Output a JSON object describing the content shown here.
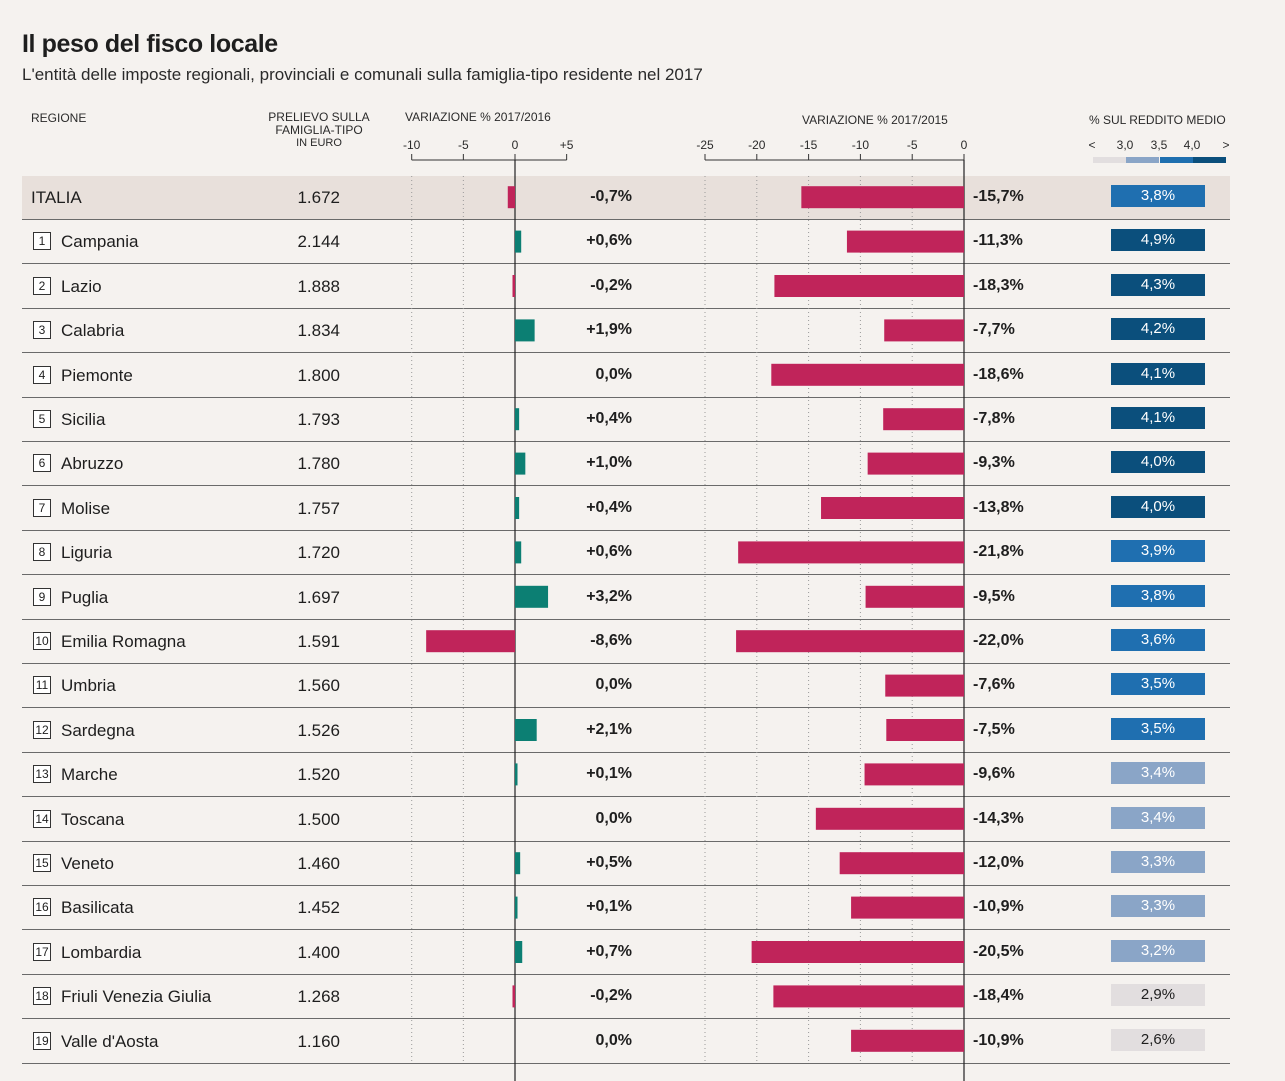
{
  "title": "Il peso del fisco locale",
  "subtitle": "L'entità delle imposte regionali, provinciali e comunali sulla famiglia-tipo residente nel 2017",
  "headers": {
    "region": "REGIONE",
    "amount_l1": "PRELIEVO SULLA",
    "amount_l2": "FAMIGLIA-TIPO",
    "amount_l3": "IN EURO",
    "v16": "VARIAZIONE % 2017/2016",
    "v15": "VARIAZIONE % 2017/2015",
    "income": "% SUL REDDITO MEDIO"
  },
  "colors": {
    "negative": "#c0245a",
    "positive": "#0c7f73",
    "income_dark": "#0b4f7c",
    "income_mid": "#1f6fb0",
    "income_light": "#8aa5c7",
    "income_lightest": "#e2dedf"
  },
  "chart_data": {
    "type": "table",
    "title": "Il peso del fisco locale",
    "subtitle": "L'entità delle imposte regionali, provinciali e comunali sulla famiglia-tipo residente nel 2017",
    "v16_axis": {
      "range": [
        -10,
        5
      ],
      "ticks": [
        "-10",
        "-5",
        "0",
        "+5"
      ]
    },
    "v15_axis": {
      "range": [
        -25,
        0
      ],
      "ticks": [
        "-25",
        "-20",
        "-15",
        "-10",
        "-5",
        "0"
      ]
    },
    "income_legend": {
      "labels": [
        "<",
        "3,0",
        "3,5",
        "4,0",
        ">"
      ]
    },
    "rows": [
      {
        "rank": "",
        "region": "ITALIA",
        "amount": "1.672",
        "v16": -0.7,
        "v16_label": "-0,7%",
        "v15": -15.7,
        "v15_label": "-15,7%",
        "income": 3.8,
        "income_label": "3,8%"
      },
      {
        "rank": "1",
        "region": "Campania",
        "amount": "2.144",
        "v16": 0.6,
        "v16_label": "+0,6%",
        "v15": -11.3,
        "v15_label": "-11,3%",
        "income": 4.9,
        "income_label": "4,9%"
      },
      {
        "rank": "2",
        "region": "Lazio",
        "amount": "1.888",
        "v16": -0.2,
        "v16_label": "-0,2%",
        "v15": -18.3,
        "v15_label": "-18,3%",
        "income": 4.3,
        "income_label": "4,3%"
      },
      {
        "rank": "3",
        "region": "Calabria",
        "amount": "1.834",
        "v16": 1.9,
        "v16_label": "+1,9%",
        "v15": -7.7,
        "v15_label": "-7,7%",
        "income": 4.2,
        "income_label": "4,2%"
      },
      {
        "rank": "4",
        "region": "Piemonte",
        "amount": "1.800",
        "v16": 0.0,
        "v16_label": "0,0%",
        "v15": -18.6,
        "v15_label": "-18,6%",
        "income": 4.1,
        "income_label": "4,1%"
      },
      {
        "rank": "5",
        "region": "Sicilia",
        "amount": "1.793",
        "v16": 0.4,
        "v16_label": "+0,4%",
        "v15": -7.8,
        "v15_label": "-7,8%",
        "income": 4.1,
        "income_label": "4,1%"
      },
      {
        "rank": "6",
        "region": "Abruzzo",
        "amount": "1.780",
        "v16": 1.0,
        "v16_label": "+1,0%",
        "v15": -9.3,
        "v15_label": "-9,3%",
        "income": 4.0,
        "income_label": "4,0%"
      },
      {
        "rank": "7",
        "region": "Molise",
        "amount": "1.757",
        "v16": 0.4,
        "v16_label": "+0,4%",
        "v15": -13.8,
        "v15_label": "-13,8%",
        "income": 4.0,
        "income_label": "4,0%"
      },
      {
        "rank": "8",
        "region": "Liguria",
        "amount": "1.720",
        "v16": 0.6,
        "v16_label": "+0,6%",
        "v15": -21.8,
        "v15_label": "-21,8%",
        "income": 3.9,
        "income_label": "3,9%"
      },
      {
        "rank": "9",
        "region": "Puglia",
        "amount": "1.697",
        "v16": 3.2,
        "v16_label": "+3,2%",
        "v15": -9.5,
        "v15_label": "-9,5%",
        "income": 3.8,
        "income_label": "3,8%"
      },
      {
        "rank": "10",
        "region": "Emilia Romagna",
        "amount": "1.591",
        "v16": -8.6,
        "v16_label": "-8,6%",
        "v15": -22.0,
        "v15_label": "-22,0%",
        "income": 3.6,
        "income_label": "3,6%"
      },
      {
        "rank": "11",
        "region": "Umbria",
        "amount": "1.560",
        "v16": 0.0,
        "v16_label": "0,0%",
        "v15": -7.6,
        "v15_label": "-7,6%",
        "income": 3.5,
        "income_label": "3,5%"
      },
      {
        "rank": "12",
        "region": "Sardegna",
        "amount": "1.526",
        "v16": 2.1,
        "v16_label": "+2,1%",
        "v15": -7.5,
        "v15_label": "-7,5%",
        "income": 3.5,
        "income_label": "3,5%"
      },
      {
        "rank": "13",
        "region": "Marche",
        "amount": "1.520",
        "v16": 0.1,
        "v16_label": "+0,1%",
        "v15": -9.6,
        "v15_label": "-9,6%",
        "income": 3.4,
        "income_label": "3,4%"
      },
      {
        "rank": "14",
        "region": "Toscana",
        "amount": "1.500",
        "v16": 0.0,
        "v16_label": "0,0%",
        "v15": -14.3,
        "v15_label": "-14,3%",
        "income": 3.4,
        "income_label": "3,4%"
      },
      {
        "rank": "15",
        "region": "Veneto",
        "amount": "1.460",
        "v16": 0.5,
        "v16_label": "+0,5%",
        "v15": -12.0,
        "v15_label": "-12,0%",
        "income": 3.3,
        "income_label": "3,3%"
      },
      {
        "rank": "16",
        "region": "Basilicata",
        "amount": "1.452",
        "v16": 0.1,
        "v16_label": "+0,1%",
        "v15": -10.9,
        "v15_label": "-10,9%",
        "income": 3.3,
        "income_label": "3,3%"
      },
      {
        "rank": "17",
        "region": "Lombardia",
        "amount": "1.400",
        "v16": 0.7,
        "v16_label": "+0,7%",
        "v15": -20.5,
        "v15_label": "-20,5%",
        "income": 3.2,
        "income_label": "3,2%"
      },
      {
        "rank": "18",
        "region": "Friuli Venezia Giulia",
        "amount": "1.268",
        "v16": -0.2,
        "v16_label": "-0,2%",
        "v15": -18.4,
        "v15_label": "-18,4%",
        "income": 2.9,
        "income_label": "2,9%"
      },
      {
        "rank": "19",
        "region": "Valle d'Aosta",
        "amount": "1.160",
        "v16": 0.0,
        "v16_label": "0,0%",
        "v15": -10.9,
        "v15_label": "-10,9%",
        "income": 2.6,
        "income_label": "2,6%"
      }
    ]
  }
}
